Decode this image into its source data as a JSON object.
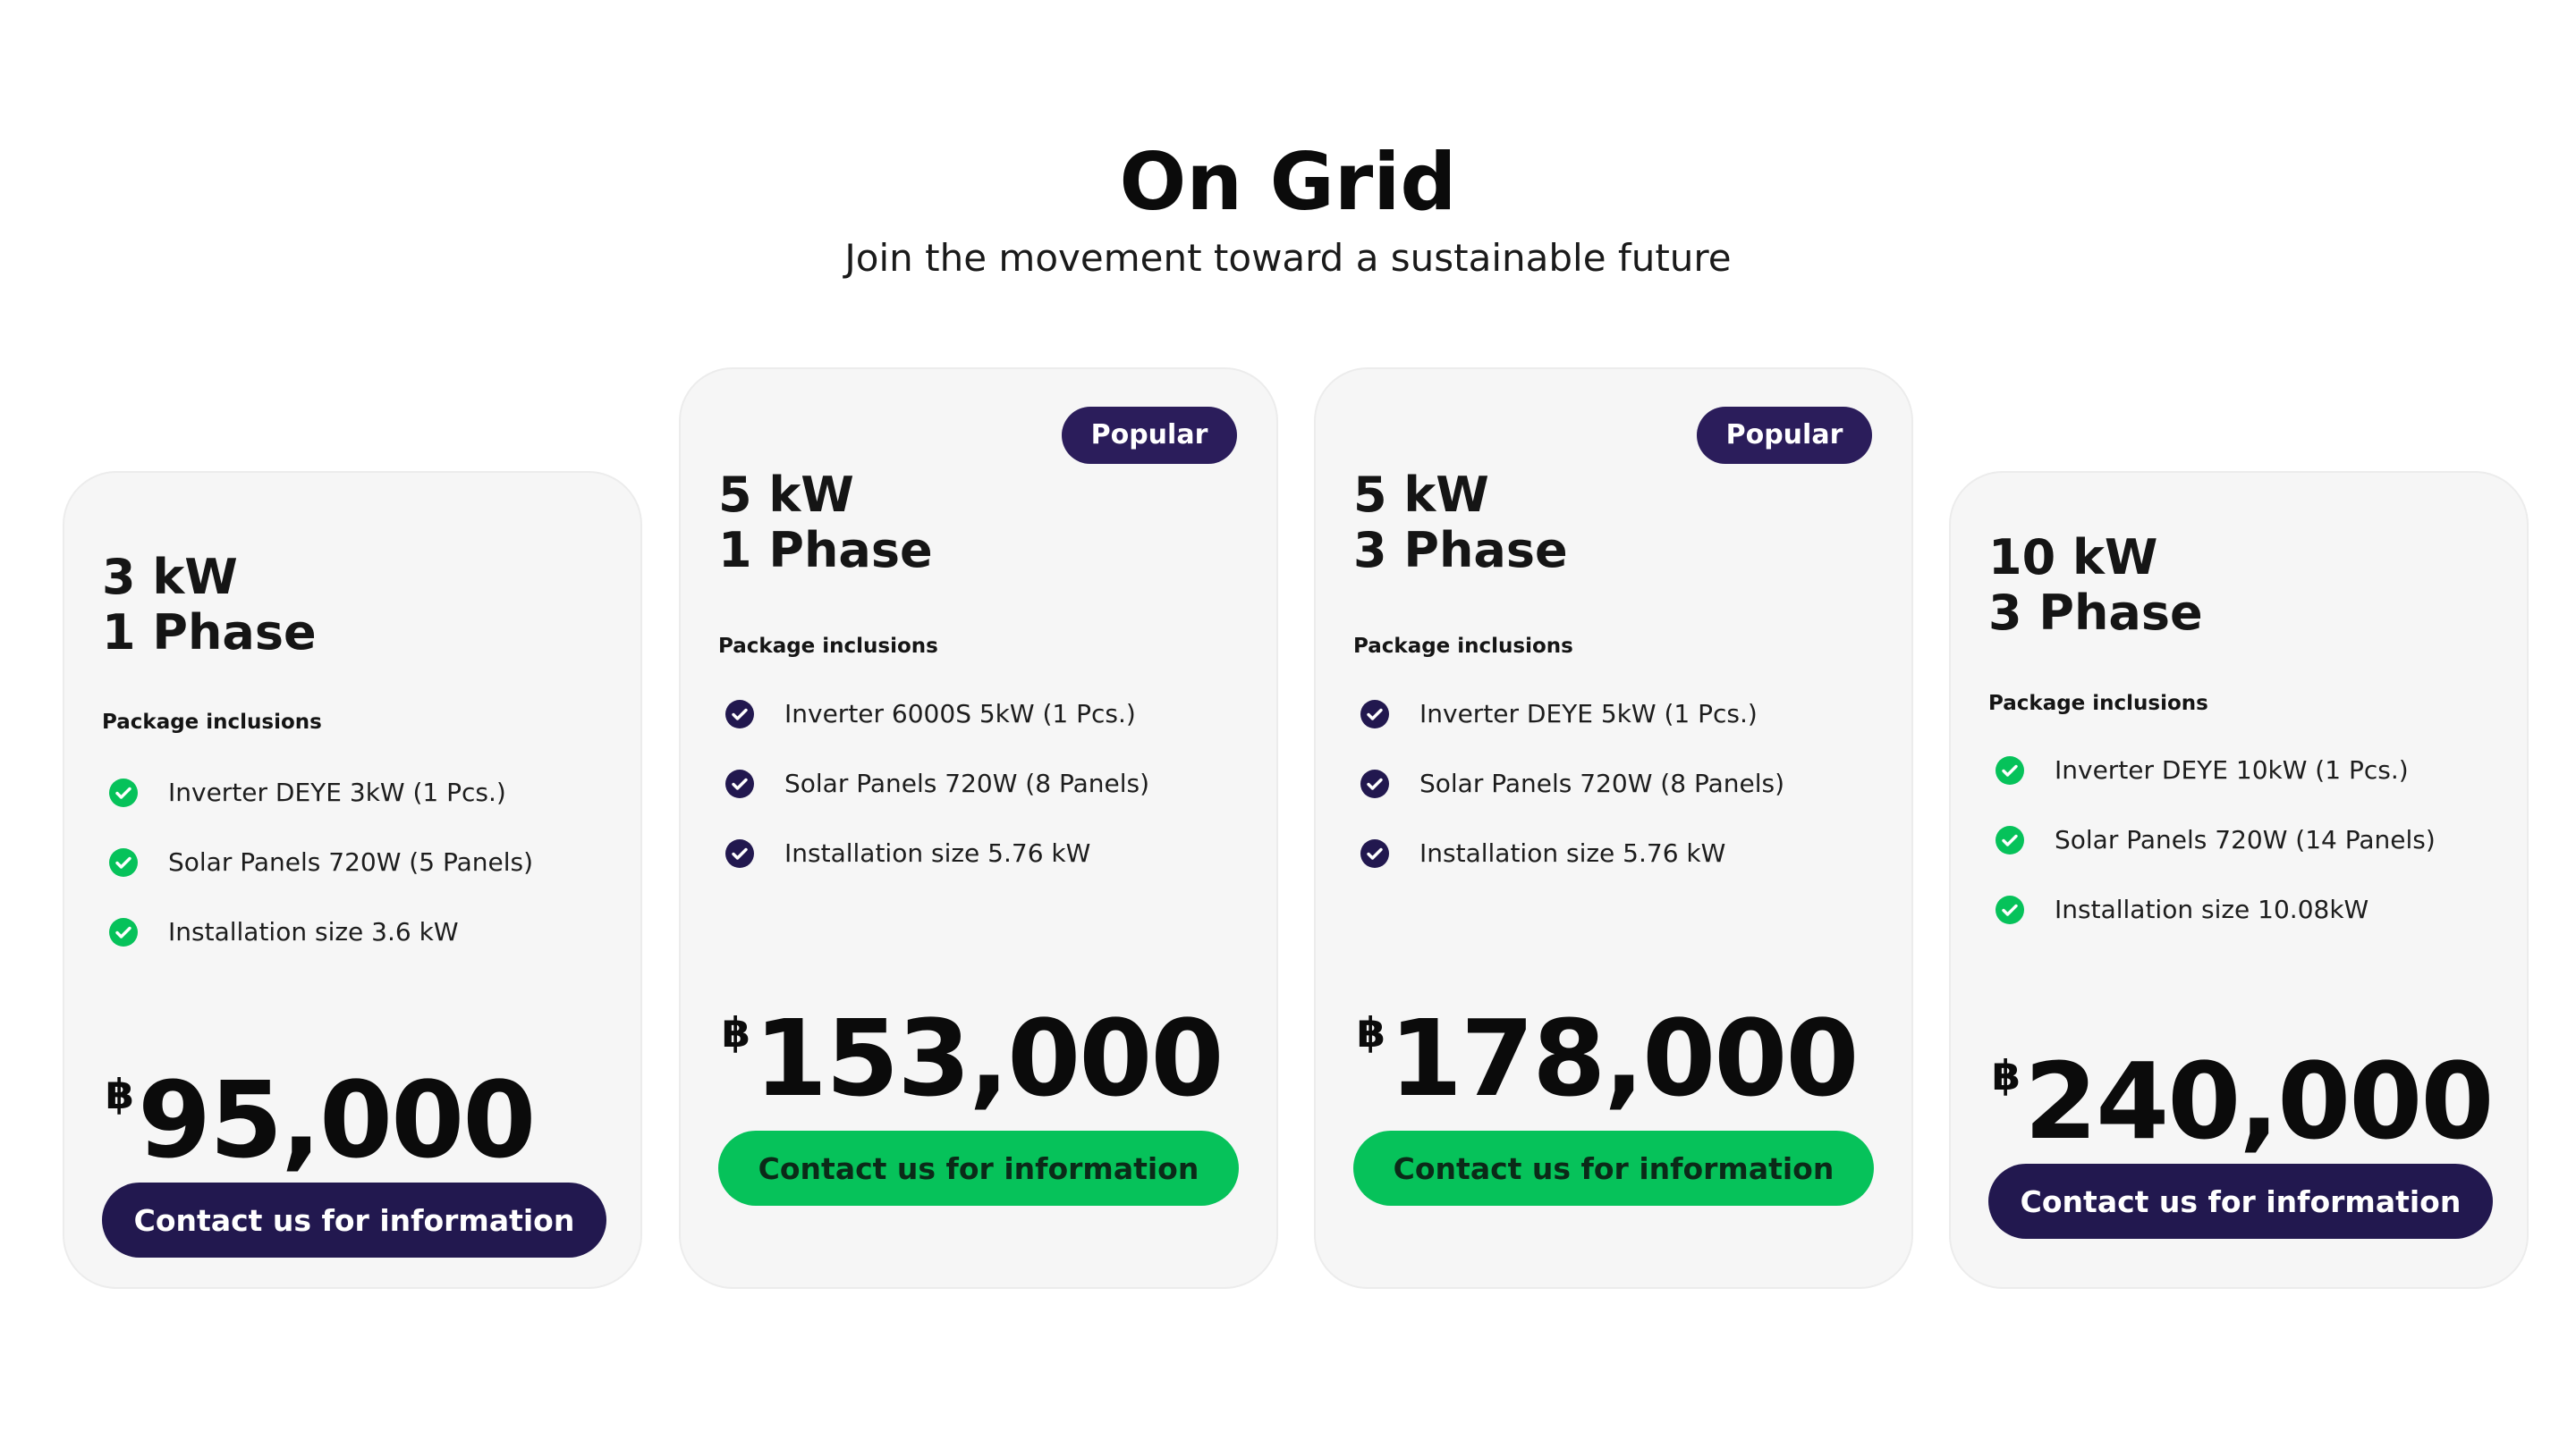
{
  "header": {
    "title": "On Grid",
    "subtitle": "Join the movement toward a sustainable future"
  },
  "colors": {
    "accent_dark": "#22184f",
    "badge": "#2b1d5b",
    "accent_green": "#06c25a",
    "card_bg": "#f6f6f6"
  },
  "plans": [
    {
      "power": "3 kW",
      "phase": "1 Phase",
      "popular": false,
      "inclusions_heading": "Package inclusions",
      "check_icon": "green-check-circle-icon",
      "features": [
        "Inverter DEYE 3kW (1 Pcs.)",
        "Solar Panels 720W (5 Panels)",
        "Installation size 3.6 kW"
      ],
      "currency": "฿",
      "price": "95,000",
      "cta_label": "Contact us for information",
      "cta_style": "dark"
    },
    {
      "power": "5 kW",
      "phase": "1 Phase",
      "popular": true,
      "badge_label": "Popular",
      "inclusions_heading": "Package inclusions",
      "check_icon": "navy-check-circle-icon",
      "features": [
        "Inverter 6000S 5kW (1 Pcs.)",
        "Solar Panels 720W (8 Panels)",
        "Installation size 5.76 kW"
      ],
      "currency": "฿",
      "price": "153,000",
      "cta_label": "Contact us for information",
      "cta_style": "green"
    },
    {
      "power": "5 kW",
      "phase": "3 Phase",
      "popular": true,
      "badge_label": "Popular",
      "inclusions_heading": "Package inclusions",
      "check_icon": "navy-check-circle-icon",
      "features": [
        "Inverter DEYE 5kW (1 Pcs.)",
        "Solar Panels 720W (8 Panels)",
        "Installation size 5.76 kW"
      ],
      "currency": "฿",
      "price": "178,000",
      "cta_label": "Contact us for information",
      "cta_style": "green"
    },
    {
      "power": "10 kW",
      "phase": "3 Phase",
      "popular": false,
      "inclusions_heading": "Package inclusions",
      "check_icon": "green-check-circle-icon",
      "features": [
        "Inverter DEYE 10kW (1 Pcs.)",
        "Solar Panels 720W (14 Panels)",
        "Installation size 10.08kW"
      ],
      "currency": "฿",
      "price": "240,000",
      "cta_label": "Contact us for information",
      "cta_style": "dark"
    }
  ]
}
